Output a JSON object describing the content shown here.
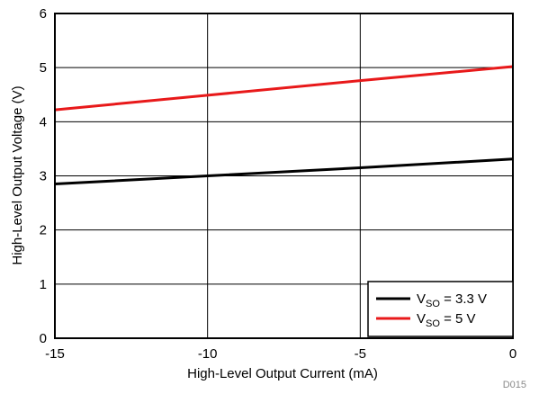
{
  "chart_data": {
    "type": "line",
    "xlabel": "High-Level Output Current (mA)",
    "ylabel": "High-Level Output Voltage (V)",
    "xlim": [
      -15,
      0
    ],
    "ylim": [
      0,
      6
    ],
    "x_ticks": [
      "-15",
      "-10",
      "-5",
      "0"
    ],
    "x_tick_values": [
      -15,
      -10,
      -5,
      0
    ],
    "y_ticks": [
      "0",
      "1",
      "2",
      "3",
      "4",
      "5",
      "6"
    ],
    "y_tick_values": [
      0,
      1,
      2,
      3,
      4,
      5,
      6
    ],
    "grid": true,
    "legend_position": "bottom-right",
    "series": [
      {
        "name": "V_SO = 3.3 V",
        "legend_main": "V",
        "legend_sub": "SO",
        "legend_rest": " = 3.3 V",
        "color": "#000000",
        "x": [
          -15,
          -10,
          -5,
          0
        ],
        "y": [
          2.85,
          3.0,
          3.15,
          3.31
        ]
      },
      {
        "name": "V_SO = 5 V",
        "legend_main": "V",
        "legend_sub": "SO",
        "legend_rest": " = 5 V",
        "color": "#e8191a",
        "x": [
          -15,
          -10,
          -5,
          0
        ],
        "y": [
          4.22,
          4.49,
          4.76,
          5.02
        ]
      }
    ]
  },
  "figure_code": "D015"
}
